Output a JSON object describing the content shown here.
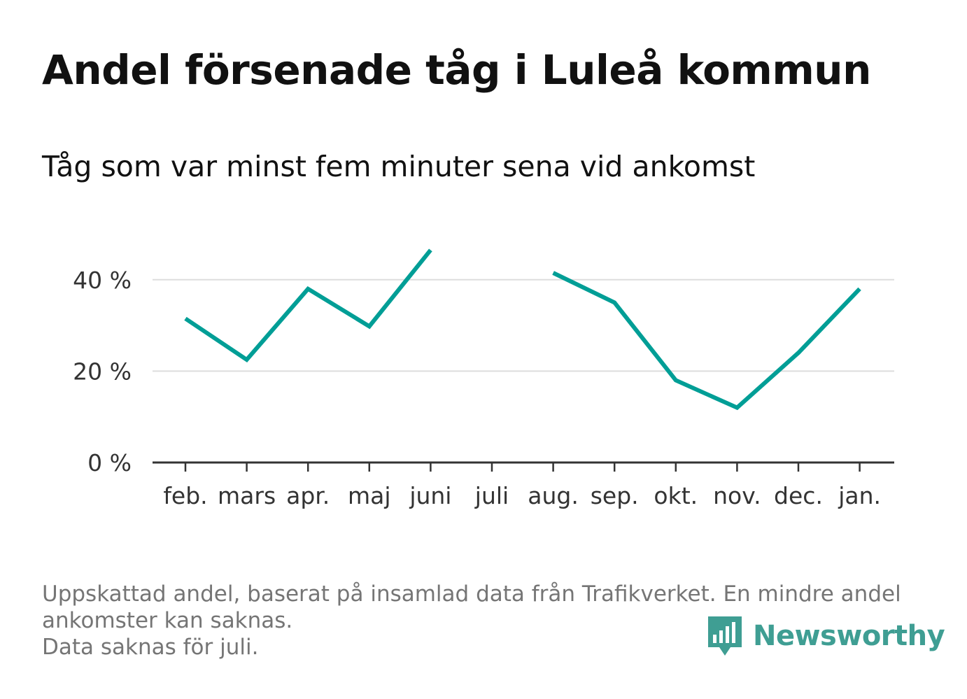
{
  "header": {
    "title": "Andel försenade tåg i Luleå kommun",
    "subtitle": "Tåg som var minst fem minuter sena vid ankomst"
  },
  "chart_data": {
    "type": "line",
    "categories": [
      "feb.",
      "mars",
      "apr.",
      "maj",
      "juni",
      "juli",
      "aug.",
      "sep.",
      "okt.",
      "nov.",
      "dec.",
      "jan."
    ],
    "series": [
      {
        "values": [
          31.5,
          22.5,
          38,
          29.8,
          46.5,
          null,
          41.5,
          35,
          18,
          12,
          24,
          38
        ],
        "color": "#009e96"
      }
    ],
    "y_ticks": [
      0,
      20,
      40
    ],
    "y_tick_labels": [
      "0 %",
      "20 %",
      "40 %"
    ],
    "ylim": [
      0,
      50
    ],
    "grid": true,
    "line_color": "#009e96",
    "grid_color": "#dddddd"
  },
  "footer": {
    "note_line1": "Uppskattad andel, baserat på insamlad data från Trafikverket. En mindre andel",
    "note_line2": "ankomster kan saknas.",
    "note_line3": "Data saknas för juli.",
    "brand": "Newsworthy",
    "brand_icon": "newsworthy-logo-icon",
    "brand_color": "#3f9e93"
  }
}
